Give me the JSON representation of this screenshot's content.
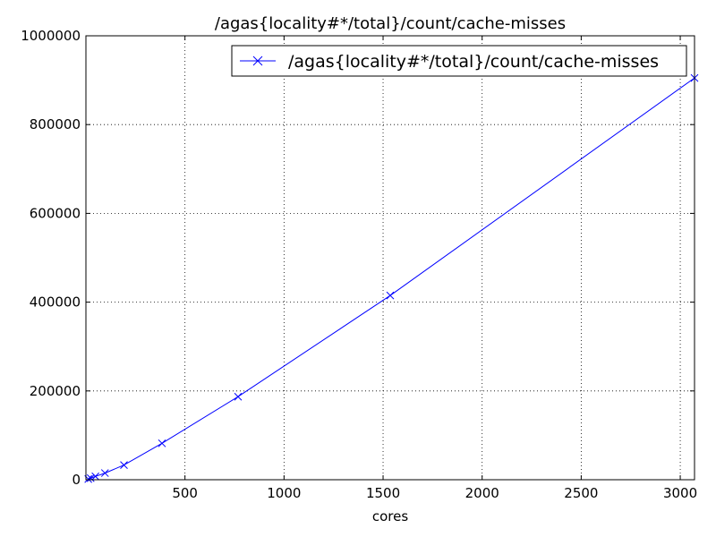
{
  "chart_data": {
    "type": "line",
    "title": "/agas{locality#*/total}/count/cache-misses",
    "xlabel": "cores",
    "ylabel": "",
    "xlim": [
      0,
      3072
    ],
    "ylim": [
      0,
      1000000
    ],
    "xticks": [
      500,
      1000,
      1500,
      2000,
      2500,
      3000
    ],
    "yticks": [
      0,
      200000,
      400000,
      600000,
      800000,
      1000000
    ],
    "grid": true,
    "legend_position": "top-right",
    "series": [
      {
        "name": "/agas{locality#*/total}/count/cache-misses",
        "color": "#0000ff",
        "marker": "x",
        "x": [
          12,
          24,
          48,
          96,
          192,
          384,
          768,
          1536,
          3072
        ],
        "y": [
          1500,
          3500,
          7500,
          15000,
          33000,
          82000,
          187000,
          415000,
          905000
        ]
      }
    ]
  }
}
